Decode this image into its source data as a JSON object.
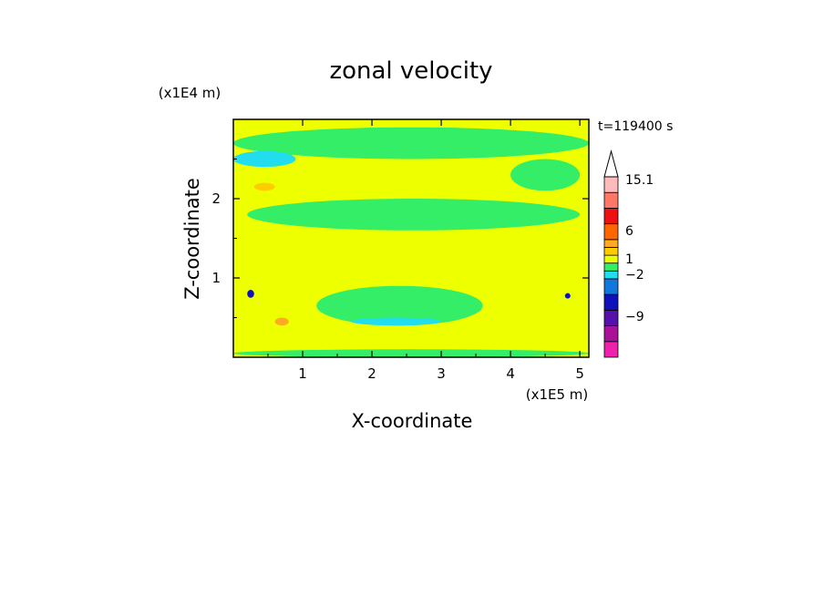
{
  "chart_data": {
    "type": "heatmap",
    "title": "zonal velocity",
    "xlabel": "X-coordinate",
    "ylabel": "Z-coordinate",
    "x_unit": "(x1E5 m)",
    "y_unit": "(x1E4 m)",
    "time_label": "t=119400 s",
    "xlim": [
      0,
      5.13
    ],
    "ylim": [
      0,
      3.0
    ],
    "x_ticks": [
      "1",
      "2",
      "3",
      "4",
      "5"
    ],
    "y_ticks": [
      "1",
      "2"
    ],
    "colorbar": {
      "labels": [
        "15.1",
        "6",
        "1",
        "−2",
        "−9"
      ],
      "bins": [
        {
          "lo": -15,
          "hi": -12,
          "color": "#ee22aa"
        },
        {
          "lo": -12,
          "hi": -9,
          "color": "#aa1199"
        },
        {
          "lo": -9,
          "hi": -6,
          "color": "#5511aa"
        },
        {
          "lo": -6,
          "hi": -3,
          "color": "#1111bb"
        },
        {
          "lo": -3,
          "hi": -2,
          "color": "#1177dd"
        },
        {
          "lo": -2,
          "hi": -1,
          "color": "#22ddee"
        },
        {
          "lo": -1,
          "hi": 0,
          "color": "#33ee66"
        },
        {
          "lo": 0,
          "hi": 1,
          "color": "#eeff00"
        },
        {
          "lo": 1,
          "hi": 2,
          "color": "#ffcc00"
        },
        {
          "lo": 2,
          "hi": 3,
          "color": "#ffaa22"
        },
        {
          "lo": 3,
          "hi": 6,
          "color": "#ff6600"
        },
        {
          "lo": 6,
          "hi": 9,
          "color": "#ee1111"
        },
        {
          "lo": 9,
          "hi": 12,
          "color": "#ff7766"
        },
        {
          "lo": 12,
          "hi": 15.1,
          "color": "#ffbbbb"
        }
      ],
      "extend_color": "#ffffff"
    },
    "field_description_values": {
      "background": 0.5,
      "regions": [
        {
          "x": [
            0.0,
            5.13
          ],
          "z": [
            2.5,
            2.9
          ],
          "value": -0.5
        },
        {
          "x": [
            0.0,
            0.9
          ],
          "z": [
            2.4,
            2.6
          ],
          "value": -1.5
        },
        {
          "x": [
            4.0,
            5.0
          ],
          "z": [
            2.1,
            2.5
          ],
          "value": -0.6
        },
        {
          "x": [
            0.2,
            5.0
          ],
          "z": [
            1.6,
            2.0
          ],
          "value": -0.5
        },
        {
          "x": [
            1.2,
            3.6
          ],
          "z": [
            0.4,
            0.9
          ],
          "value": -0.5
        },
        {
          "x": [
            1.7,
            3.0
          ],
          "z": [
            0.4,
            0.5
          ],
          "value": -1.5
        },
        {
          "x": [
            0.0,
            5.13
          ],
          "z": [
            0.0,
            0.1
          ],
          "value": -0.5
        },
        {
          "x": [
            0.2,
            0.3
          ],
          "z": [
            0.75,
            0.85
          ],
          "value": -4.0
        },
        {
          "x": [
            4.8,
            4.85
          ],
          "z": [
            0.75,
            0.8
          ],
          "value": -4.0
        },
        {
          "x": [
            0.6,
            0.8
          ],
          "z": [
            0.4,
            0.5
          ],
          "value": 2.5
        },
        {
          "x": [
            0.3,
            0.6
          ],
          "z": [
            2.1,
            2.2
          ],
          "value": 1.5
        }
      ]
    }
  }
}
